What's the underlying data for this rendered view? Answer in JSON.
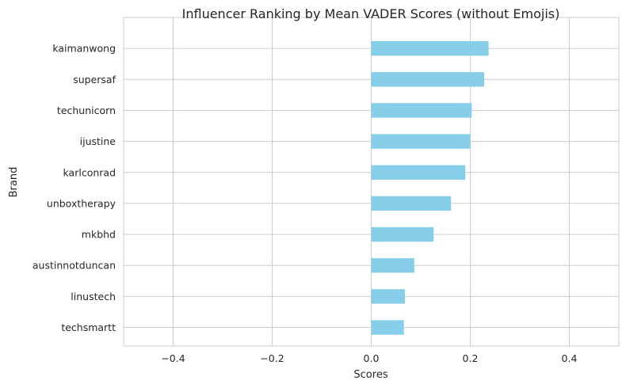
{
  "chart_data": {
    "type": "bar",
    "orientation": "horizontal",
    "title": "Influencer Ranking by Mean VADER Scores (without Emojis)",
    "xlabel": "Scores",
    "ylabel": "Brand",
    "xlim": [
      -0.5,
      0.5
    ],
    "xticks": [
      -0.4,
      -0.2,
      0.0,
      0.2,
      0.4
    ],
    "xtick_labels": [
      "−0.4",
      "−0.2",
      "0.0",
      "0.2",
      "0.4"
    ],
    "grid": true,
    "bar_color": "#87CEEB",
    "categories": [
      "kaimanwong",
      "supersaf",
      "techunicorn",
      "ijustine",
      "karlconrad",
      "unboxtherapy",
      "mkbhd",
      "austinnotduncan",
      "linustech",
      "techsmartt"
    ],
    "values": [
      0.237,
      0.228,
      0.203,
      0.2,
      0.19,
      0.161,
      0.126,
      0.087,
      0.068,
      0.066
    ]
  }
}
